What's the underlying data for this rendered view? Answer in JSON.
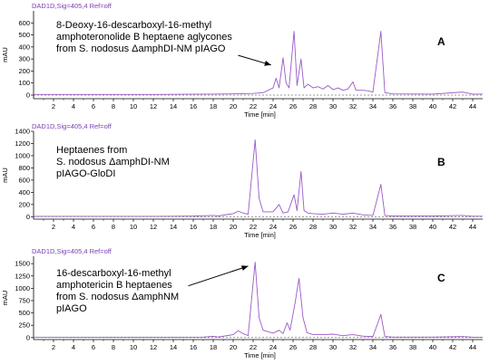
{
  "colors": {
    "trace": "#9b59c9",
    "header": "#7a3fb0",
    "axis": "#000000",
    "gridline": "#000000"
  },
  "chart_data": [
    {
      "type": "line",
      "panel_label": "A",
      "header": "DAD1D,Sig=405,4  Ref=off",
      "annotation": [
        "8-Deoxy-16-descarboxyl-16-methyl",
        "amphoteronolide B heptaene aglycones",
        "from S. nodosus ΔamphDI-NM pIAGO"
      ],
      "ylabel": "mAU",
      "xlabel": "Time [min]",
      "xlim": [
        0,
        45
      ],
      "ylim": [
        -30,
        700
      ],
      "xticks": [
        "2",
        "4",
        "6",
        "8",
        "10",
        "12",
        "14",
        "16",
        "18",
        "20",
        "22",
        "24",
        "26",
        "28",
        "30",
        "32",
        "34",
        "36",
        "38",
        "40",
        "42",
        "44"
      ],
      "yticks": [
        "0",
        "100",
        "200",
        "300",
        "400",
        "500",
        "600"
      ],
      "arrow": {
        "from": [
          20.5,
          330
        ],
        "to": [
          23.8,
          250
        ]
      },
      "series": [
        {
          "values": [
            [
              0,
              5
            ],
            [
              12,
              5
            ],
            [
              15,
              7
            ],
            [
              18,
              8
            ],
            [
              20,
              10
            ],
            [
              22,
              14
            ],
            [
              23,
              20
            ],
            [
              24,
              60
            ],
            [
              24.3,
              140
            ],
            [
              24.6,
              60
            ],
            [
              25,
              310
            ],
            [
              25.3,
              100
            ],
            [
              25.6,
              60
            ],
            [
              26.1,
              530
            ],
            [
              26.4,
              80
            ],
            [
              26.8,
              300
            ],
            [
              27.1,
              60
            ],
            [
              27.5,
              90
            ],
            [
              28,
              60
            ],
            [
              28.5,
              70
            ],
            [
              29,
              50
            ],
            [
              29.5,
              80
            ],
            [
              30,
              45
            ],
            [
              30.5,
              60
            ],
            [
              31,
              40
            ],
            [
              31.5,
              50
            ],
            [
              32,
              110
            ],
            [
              32.3,
              40
            ],
            [
              33,
              40
            ],
            [
              33.5,
              35
            ],
            [
              34,
              25
            ],
            [
              34.8,
              530
            ],
            [
              35.2,
              20
            ],
            [
              36,
              10
            ],
            [
              40,
              8
            ],
            [
              43,
              25
            ],
            [
              44,
              8
            ],
            [
              45,
              8
            ]
          ]
        }
      ]
    },
    {
      "type": "line",
      "panel_label": "B",
      "header": "DAD1D,Sig=405,4  Ref=off",
      "annotation": [
        "Heptaenes from",
        "S. nodosus ΔamphDI-NM",
        "pIAGO-GloDI"
      ],
      "ylabel": "mAU",
      "xlabel": "Time [min]",
      "xlim": [
        0,
        45
      ],
      "ylim": [
        -40,
        1400
      ],
      "xticks": [
        "2",
        "4",
        "6",
        "8",
        "10",
        "12",
        "14",
        "16",
        "18",
        "20",
        "22",
        "24",
        "26",
        "28",
        "30",
        "32",
        "34",
        "36",
        "38",
        "40",
        "42",
        "44"
      ],
      "yticks": [
        "0",
        "200",
        "400",
        "600",
        "800",
        "1000",
        "1200",
        "1400"
      ],
      "series": [
        {
          "values": [
            [
              0,
              5
            ],
            [
              12,
              5
            ],
            [
              14,
              8
            ],
            [
              16,
              10
            ],
            [
              18,
              20
            ],
            [
              18.5,
              12
            ],
            [
              20,
              50
            ],
            [
              20.5,
              90
            ],
            [
              21,
              60
            ],
            [
              21.5,
              40
            ],
            [
              22.2,
              1260
            ],
            [
              22.6,
              300
            ],
            [
              23,
              80
            ],
            [
              24,
              80
            ],
            [
              24.6,
              200
            ],
            [
              25,
              60
            ],
            [
              25.5,
              80
            ],
            [
              26.1,
              360
            ],
            [
              26.4,
              100
            ],
            [
              26.8,
              740
            ],
            [
              27.1,
              100
            ],
            [
              27.5,
              60
            ],
            [
              28,
              50
            ],
            [
              29,
              40
            ],
            [
              30,
              60
            ],
            [
              31,
              40
            ],
            [
              32,
              60
            ],
            [
              33,
              30
            ],
            [
              34,
              20
            ],
            [
              34.8,
              530
            ],
            [
              35.2,
              20
            ],
            [
              36,
              10
            ],
            [
              40,
              10
            ],
            [
              43,
              20
            ],
            [
              44,
              8
            ],
            [
              45,
              8
            ]
          ]
        }
      ]
    },
    {
      "type": "line",
      "panel_label": "C",
      "header": "DAD1D,Sig=405,4  Ref=off",
      "annotation": [
        "16-descarboxyl-16-methyl",
        "amphotericin B heptaenes",
        "from S. nodosus ΔamphNM",
        "pIAGO"
      ],
      "ylabel": "mAU",
      "xlabel": "Time [min]",
      "xlim": [
        0,
        45
      ],
      "ylim": [
        -40,
        1650
      ],
      "xticks": [
        "2",
        "4",
        "6",
        "8",
        "10",
        "12",
        "14",
        "16",
        "18",
        "20",
        "22",
        "24",
        "26",
        "28",
        "30",
        "32",
        "34",
        "36",
        "38",
        "40",
        "42",
        "44"
      ],
      "yticks": [
        "0",
        "250",
        "500",
        "750",
        "1000",
        "1250",
        "1500"
      ],
      "arrow": {
        "from": [
          15.5,
          1050
        ],
        "to": [
          21.5,
          1450
        ]
      },
      "series": [
        {
          "values": [
            [
              0,
              5
            ],
            [
              14,
              8
            ],
            [
              17,
              10
            ],
            [
              18,
              25
            ],
            [
              18.5,
              12
            ],
            [
              20,
              60
            ],
            [
              20.5,
              140
            ],
            [
              21,
              80
            ],
            [
              21.5,
              40
            ],
            [
              22.2,
              1530
            ],
            [
              22.6,
              400
            ],
            [
              23,
              150
            ],
            [
              24,
              90
            ],
            [
              24.6,
              150
            ],
            [
              25,
              80
            ],
            [
              25.4,
              300
            ],
            [
              25.7,
              150
            ],
            [
              26.2,
              700
            ],
            [
              26.6,
              1200
            ],
            [
              27,
              400
            ],
            [
              27.4,
              100
            ],
            [
              28,
              60
            ],
            [
              29,
              60
            ],
            [
              30,
              70
            ],
            [
              31,
              40
            ],
            [
              32,
              60
            ],
            [
              33,
              30
            ],
            [
              34,
              20
            ],
            [
              34.8,
              470
            ],
            [
              35.2,
              20
            ],
            [
              36,
              10
            ],
            [
              40,
              10
            ],
            [
              43,
              20
            ],
            [
              44,
              8
            ],
            [
              45,
              8
            ]
          ]
        }
      ]
    }
  ]
}
